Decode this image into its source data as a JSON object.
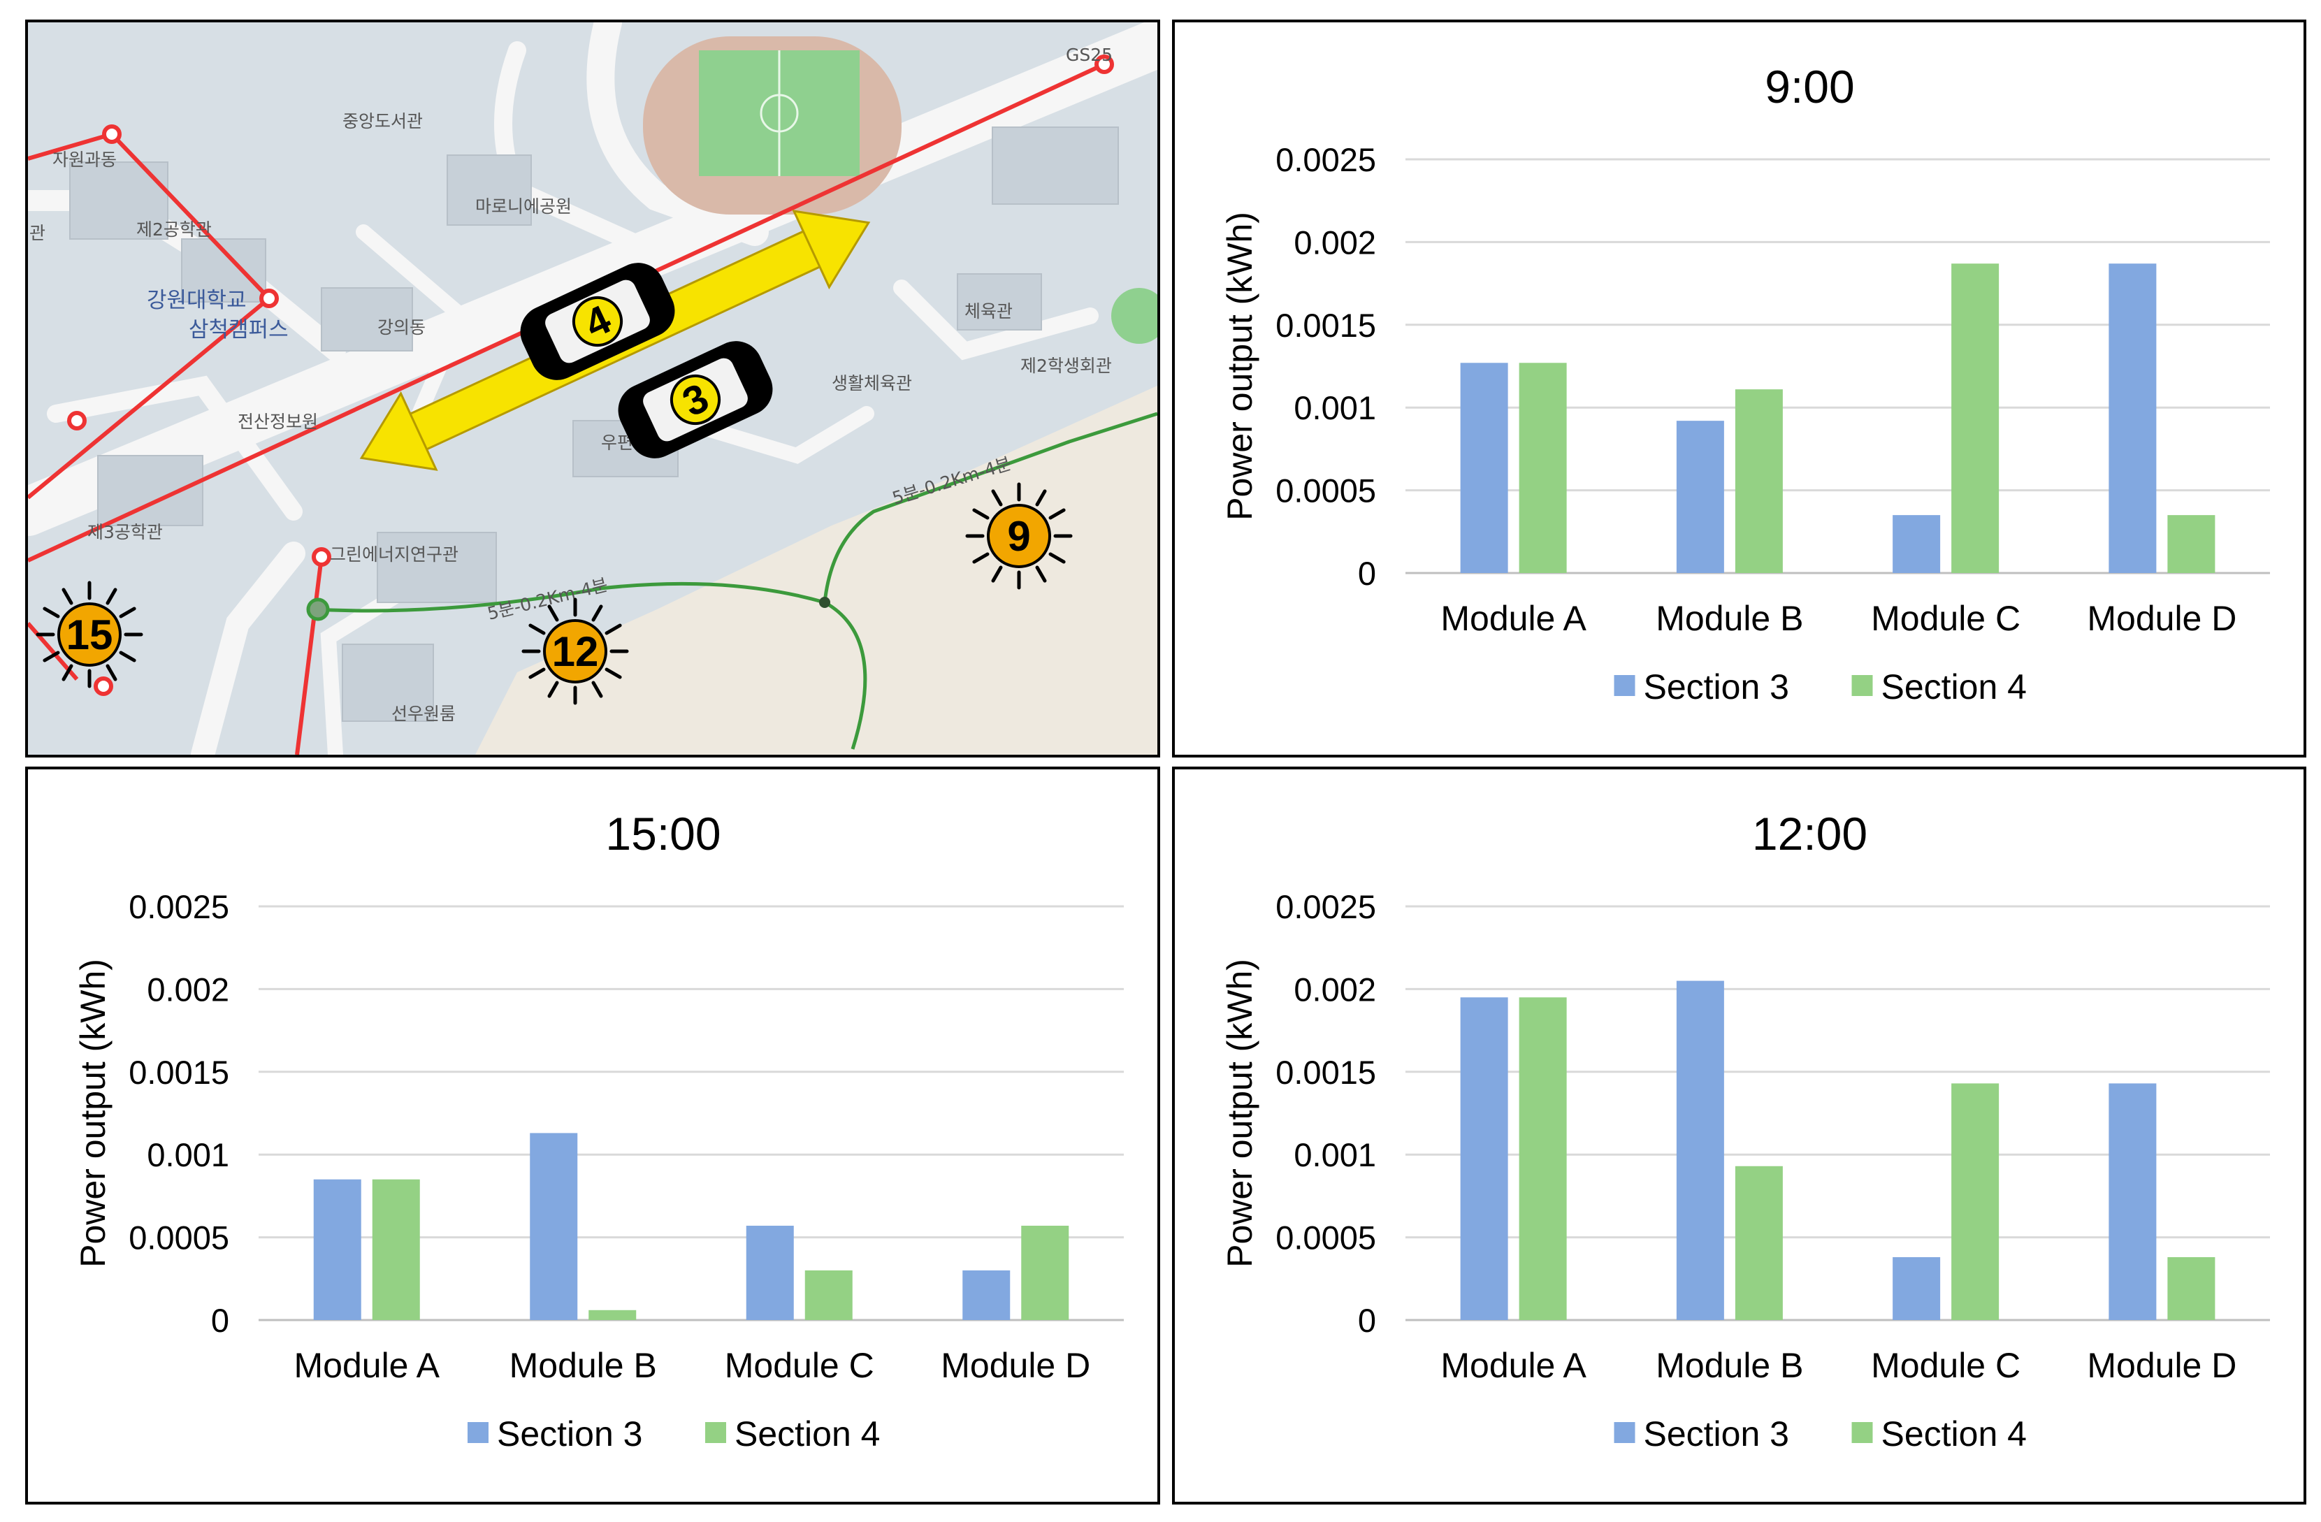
{
  "map": {
    "labels": [
      {
        "id": "jawon",
        "text": "자원과동"
      },
      {
        "id": "junganglib",
        "text": "중앙도서관"
      },
      {
        "id": "maroni",
        "text": "마로니에공원"
      },
      {
        "id": "eng2",
        "text": "제2공학관"
      },
      {
        "id": "kwu1",
        "text": "강원대학교"
      },
      {
        "id": "kwu2",
        "text": "삼척캠퍼스"
      },
      {
        "id": "lecture",
        "text": "강의동"
      },
      {
        "id": "jeonsan",
        "text": "전산정보원"
      },
      {
        "id": "eng3",
        "text": "제3공학관"
      },
      {
        "id": "green",
        "text": "그린에너지연구관"
      },
      {
        "id": "gym",
        "text": "체육관"
      },
      {
        "id": "dorm2",
        "text": "제2학생회관"
      },
      {
        "id": "sports",
        "text": "생활체육관"
      },
      {
        "id": "seonwoo",
        "text": "선우원룸"
      },
      {
        "id": "gs25",
        "text": "GS25"
      },
      {
        "id": "trail1",
        "text": "5분-0.2Km-4분"
      },
      {
        "id": "trail2",
        "text": "5분-0.2Km-4분"
      },
      {
        "id": "kwan",
        "text": "관"
      },
      {
        "id": "upart",
        "text": "우편"
      }
    ],
    "suns": [
      {
        "id": "sun-9",
        "text": "9"
      },
      {
        "id": "sun-12",
        "text": "12"
      },
      {
        "id": "sun-15",
        "text": "15"
      }
    ],
    "cars": [
      {
        "id": "car-4",
        "text": "4"
      },
      {
        "id": "car-3",
        "text": "3"
      }
    ],
    "colors": {
      "road": "#f2f2f2",
      "ground": "#d5dde3",
      "route": "#ee3333",
      "arrow": "#f7e300",
      "sun": "#f2a600",
      "trail": "#3c9a3c"
    }
  },
  "legend": {
    "section3": "Section 3",
    "section4": "Section 4"
  },
  "colors": {
    "section3": "#82a8e0",
    "section4": "#94d184",
    "grid": "#d9d9d9"
  },
  "chart_data": [
    {
      "id": "chart-9",
      "type": "bar",
      "title": "9:00",
      "ylabel": "Power output (kWh)",
      "ylim": [
        0,
        0.0025
      ],
      "yticks": [
        "0",
        "0.0005",
        "0.001",
        "0.0015",
        "0.002",
        "0.0025"
      ],
      "categories": [
        "Module A",
        "Module B",
        "Module C",
        "Module D"
      ],
      "series": [
        {
          "name": "Section 3",
          "values": [
            0.00127,
            0.00092,
            0.00035,
            0.00187
          ]
        },
        {
          "name": "Section 4",
          "values": [
            0.00127,
            0.00111,
            0.00187,
            0.00035
          ]
        }
      ],
      "legend": "bottom"
    },
    {
      "id": "chart-15",
      "type": "bar",
      "title": "15:00",
      "ylabel": "Power output (kWh)",
      "ylim": [
        0,
        0.0025
      ],
      "yticks": [
        "0",
        "0.0005",
        "0.001",
        "0.0015",
        "0.002",
        "0.0025"
      ],
      "categories": [
        "Module A",
        "Module B",
        "Module C",
        "Module D"
      ],
      "series": [
        {
          "name": "Section 3",
          "values": [
            0.00085,
            0.00113,
            0.00057,
            0.0003
          ]
        },
        {
          "name": "Section 4",
          "values": [
            0.00085,
            6e-05,
            0.0003,
            0.00057
          ]
        }
      ],
      "legend": "bottom"
    },
    {
      "id": "chart-12",
      "type": "bar",
      "title": "12:00",
      "ylabel": "Power output (kWh)",
      "ylim": [
        0,
        0.0025
      ],
      "yticks": [
        "0",
        "0.0005",
        "0.001",
        "0.0015",
        "0.002",
        "0.0025"
      ],
      "categories": [
        "Module A",
        "Module B",
        "Module C",
        "Module D"
      ],
      "series": [
        {
          "name": "Section 3",
          "values": [
            0.00195,
            0.00205,
            0.00038,
            0.00143
          ]
        },
        {
          "name": "Section 4",
          "values": [
            0.00195,
            0.00093,
            0.00143,
            0.00038
          ]
        }
      ],
      "legend": "bottom"
    }
  ]
}
